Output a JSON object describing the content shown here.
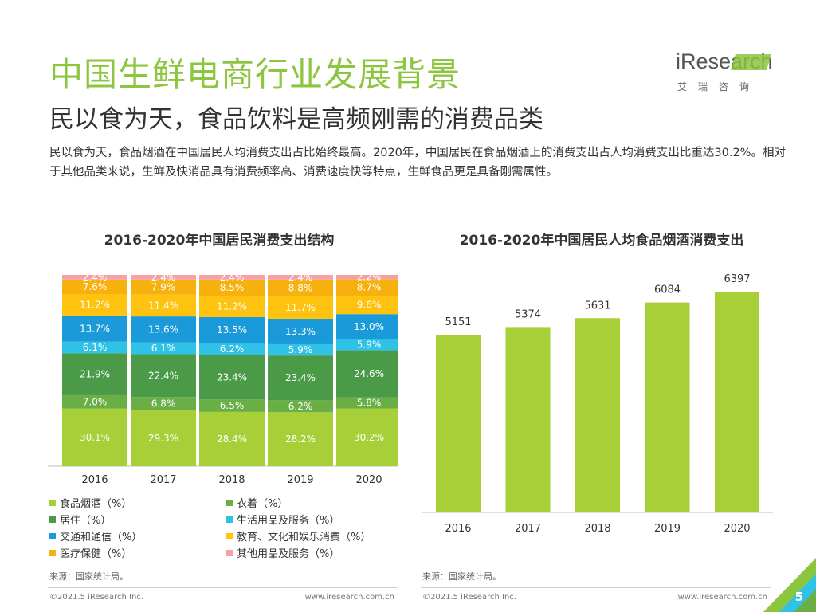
{
  "header": {
    "title": "中国生鲜电商行业发展背景",
    "subtitle": "民以食为天，食品饮料是高频刚需的消费品类",
    "intro": "民以食为天，食品烟酒在中国居民人均消费支出占比始终最高。2020年，中国居民在食品烟酒上的消费支出占人均消费支出比重达30.2%。相对于其他品类来说，生鲜及快消品具有消费频率高、消费速度快等特点，生鲜食品更是具备刚需属性。"
  },
  "logo": {
    "text": "iResearch",
    "sub": "艾瑞咨询"
  },
  "colors": {
    "accent": "#8cc63f",
    "bar": "#a6cf38"
  },
  "chart_data": [
    {
      "type": "bar",
      "stacked": true,
      "percent": true,
      "title": "2016-2020年中国居民消费支出结构",
      "categories": [
        "2016",
        "2017",
        "2018",
        "2019",
        "2020"
      ],
      "series": [
        {
          "name": "食品烟酒（%）",
          "color": "#a6cf38",
          "values": [
            30.1,
            29.3,
            28.4,
            28.2,
            30.2
          ]
        },
        {
          "name": "衣着（%）",
          "color": "#6aae46",
          "values": [
            7.0,
            6.8,
            6.5,
            6.2,
            5.8
          ]
        },
        {
          "name": "居住（%）",
          "color": "#4a9a48",
          "values": [
            21.9,
            22.4,
            23.4,
            23.4,
            24.6
          ]
        },
        {
          "name": "生活用品及服务（%）",
          "color": "#2ec2e6",
          "values": [
            6.1,
            6.1,
            6.2,
            5.9,
            5.9
          ]
        },
        {
          "name": "交通和通信（%）",
          "color": "#1a9ad8",
          "values": [
            13.7,
            13.6,
            13.5,
            13.3,
            13.0
          ]
        },
        {
          "name": "教育、文化和娱乐消费（%）",
          "color": "#ffc20e",
          "values": [
            11.2,
            11.4,
            11.2,
            11.7,
            9.6
          ]
        },
        {
          "name": "医疗保健（%）",
          "color": "#f7b10f",
          "values": [
            7.6,
            7.9,
            8.5,
            8.8,
            8.7
          ]
        },
        {
          "name": "其他用品及服务（%）",
          "color": "#f4a1a6",
          "values": [
            2.4,
            2.4,
            2.4,
            2.4,
            2.2
          ]
        }
      ],
      "labels": {
        "食品烟酒（%）": [
          "30.1%",
          "29.3%",
          "28.4%",
          "28.2%",
          "30.2%"
        ],
        "衣着（%）": [
          "7.0%",
          "6.8%",
          "6.5%",
          "6.2%",
          "5.8%"
        ],
        "居住（%）": [
          "21.9%",
          "22.4%",
          "23.4%",
          "23.4%",
          "24.6%"
        ],
        "生活用品及服务（%）": [
          "6.1%",
          "6.1%",
          "6.2%",
          "5.9%",
          "5.9%"
        ],
        "交通和通信（%）": [
          "13.7%",
          "13.6%",
          "13.5%",
          "13.3%",
          "13.0%"
        ],
        "教育、文化和娱乐消费（%）": [
          "11.2%",
          "11.4%",
          "11.2%",
          "11.7%",
          "9.6%"
        ],
        "医疗保健（%）": [
          "7.6%",
          "7.9%",
          "8.5%",
          "8.8%",
          "8.7%"
        ],
        "其他用品及服务（%）": [
          "2.4%",
          "2.4%",
          "2.4%",
          "2.4%",
          "2.2%"
        ]
      },
      "legend_position": "bottom",
      "grid": false
    },
    {
      "type": "bar",
      "title": "2016-2020年中国居民人均食品烟酒消费支出",
      "categories": [
        "2016",
        "2017",
        "2018",
        "2019",
        "2020"
      ],
      "values": [
        5151,
        5374,
        5631,
        6084,
        6397
      ],
      "ylim": [
        0,
        7000
      ],
      "grid": false
    }
  ],
  "sources": {
    "chart1": "来源：国家统计局。",
    "chart2": "来源：国家统计局。"
  },
  "footer": {
    "copyright": "©2021.5 iResearch Inc.",
    "website": "www.iresearch.com.cn",
    "page_number": "5"
  }
}
